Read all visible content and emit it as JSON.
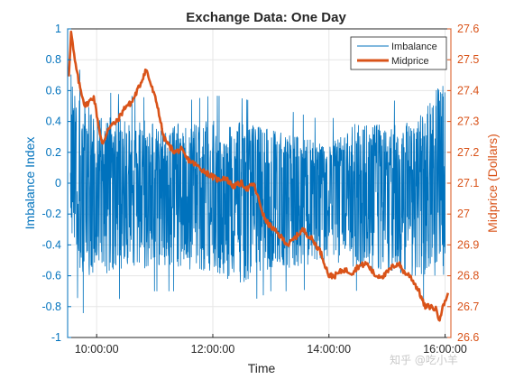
{
  "chart_data": {
    "type": "line",
    "title": "Exchange Data: One Day",
    "xlabel": "Time",
    "ylabel_left": "Imbalance Index",
    "ylabel_right": "Midprice (Dollars)",
    "x_ticks": [
      "10:00:00",
      "12:00:00",
      "14:00:00",
      "16:00:00"
    ],
    "x_tick_hours": [
      10,
      12,
      14,
      16
    ],
    "xlim_hours": [
      9.5,
      16.1
    ],
    "ylim_left": [
      -1,
      1
    ],
    "ylim_right": [
      26.6,
      27.6
    ],
    "y_ticks_left": [
      "1",
      "0.8",
      "0.6",
      "0.4",
      "0.2",
      "0",
      "-0.2",
      "-0.4",
      "-0.6",
      "-0.8",
      "-1"
    ],
    "y_ticks_left_values": [
      1,
      0.8,
      0.6,
      0.4,
      0.2,
      0,
      -0.2,
      -0.4,
      -0.6,
      -0.8,
      -1
    ],
    "y_ticks_right": [
      "27.6",
      "27.5",
      "27.4",
      "27.3",
      "27.2",
      "27.1",
      "27",
      "26.9",
      "26.8",
      "26.7",
      "26.6"
    ],
    "y_ticks_right_values": [
      27.6,
      27.5,
      27.4,
      27.3,
      27.2,
      27.1,
      27.0,
      26.9,
      26.8,
      26.7,
      26.6
    ],
    "grid": true,
    "legend_position": "top-right",
    "colors": {
      "imbalance": "#0072BD",
      "midprice": "#D95319",
      "axis_text": "#262626"
    },
    "series": [
      {
        "name": "Imbalance",
        "axis": "left",
        "style": "dense-noise",
        "x_hours": [
          9.55,
          9.6,
          9.75,
          10.0,
          10.5,
          11.0,
          11.5,
          12.0,
          12.5,
          13.0,
          13.5,
          14.0,
          14.5,
          15.0,
          15.5,
          16.0
        ],
        "upper": [
          0.75,
          0.68,
          0.55,
          0.45,
          0.42,
          0.4,
          0.38,
          0.42,
          0.4,
          0.35,
          0.3,
          0.25,
          0.4,
          0.38,
          0.4,
          0.7
        ],
        "lower": [
          -0.3,
          -0.5,
          -0.7,
          -0.6,
          -0.6,
          -0.55,
          -0.55,
          -0.6,
          -0.65,
          -0.55,
          -0.55,
          -0.5,
          -0.55,
          -0.6,
          -0.6,
          -0.65
        ],
        "center": [
          0.35,
          0.25,
          0.15,
          0.05,
          0.05,
          0.0,
          0.0,
          0.0,
          0.0,
          0.0,
          0.0,
          0.0,
          0.0,
          0.0,
          0.0,
          0.0
        ]
      },
      {
        "name": "Midprice",
        "axis": "right",
        "x_hours": [
          9.52,
          9.56,
          9.62,
          9.7,
          9.8,
          9.95,
          10.05,
          10.1,
          10.2,
          10.35,
          10.5,
          10.6,
          10.75,
          10.85,
          10.95,
          11.05,
          11.15,
          11.25,
          11.35,
          11.45,
          11.55,
          11.7,
          11.85,
          12.0,
          12.1,
          12.2,
          12.35,
          12.5,
          12.6,
          12.7,
          12.8,
          12.9,
          13.0,
          13.1,
          13.2,
          13.3,
          13.45,
          13.55,
          13.7,
          13.85,
          14.0,
          14.1,
          14.25,
          14.4,
          14.5,
          14.65,
          14.8,
          14.95,
          15.1,
          15.2,
          15.3,
          15.4,
          15.55,
          15.65,
          15.75,
          15.85,
          15.9,
          16.0,
          16.05
        ],
        "values": [
          27.45,
          27.59,
          27.5,
          27.42,
          27.35,
          27.38,
          27.27,
          27.22,
          27.28,
          27.3,
          27.35,
          27.36,
          27.42,
          27.47,
          27.41,
          27.35,
          27.25,
          27.22,
          27.2,
          27.21,
          27.18,
          27.16,
          27.14,
          27.12,
          27.11,
          27.12,
          27.09,
          27.1,
          27.08,
          27.1,
          27.04,
          26.98,
          26.96,
          26.94,
          26.92,
          26.9,
          26.93,
          26.95,
          26.92,
          26.88,
          26.8,
          26.8,
          26.82,
          26.81,
          26.83,
          26.84,
          26.8,
          26.8,
          26.83,
          26.84,
          26.81,
          26.8,
          26.75,
          26.7,
          26.7,
          26.69,
          26.66,
          26.72,
          26.74
        ]
      }
    ]
  },
  "watermark": "知乎 @吃小羊"
}
